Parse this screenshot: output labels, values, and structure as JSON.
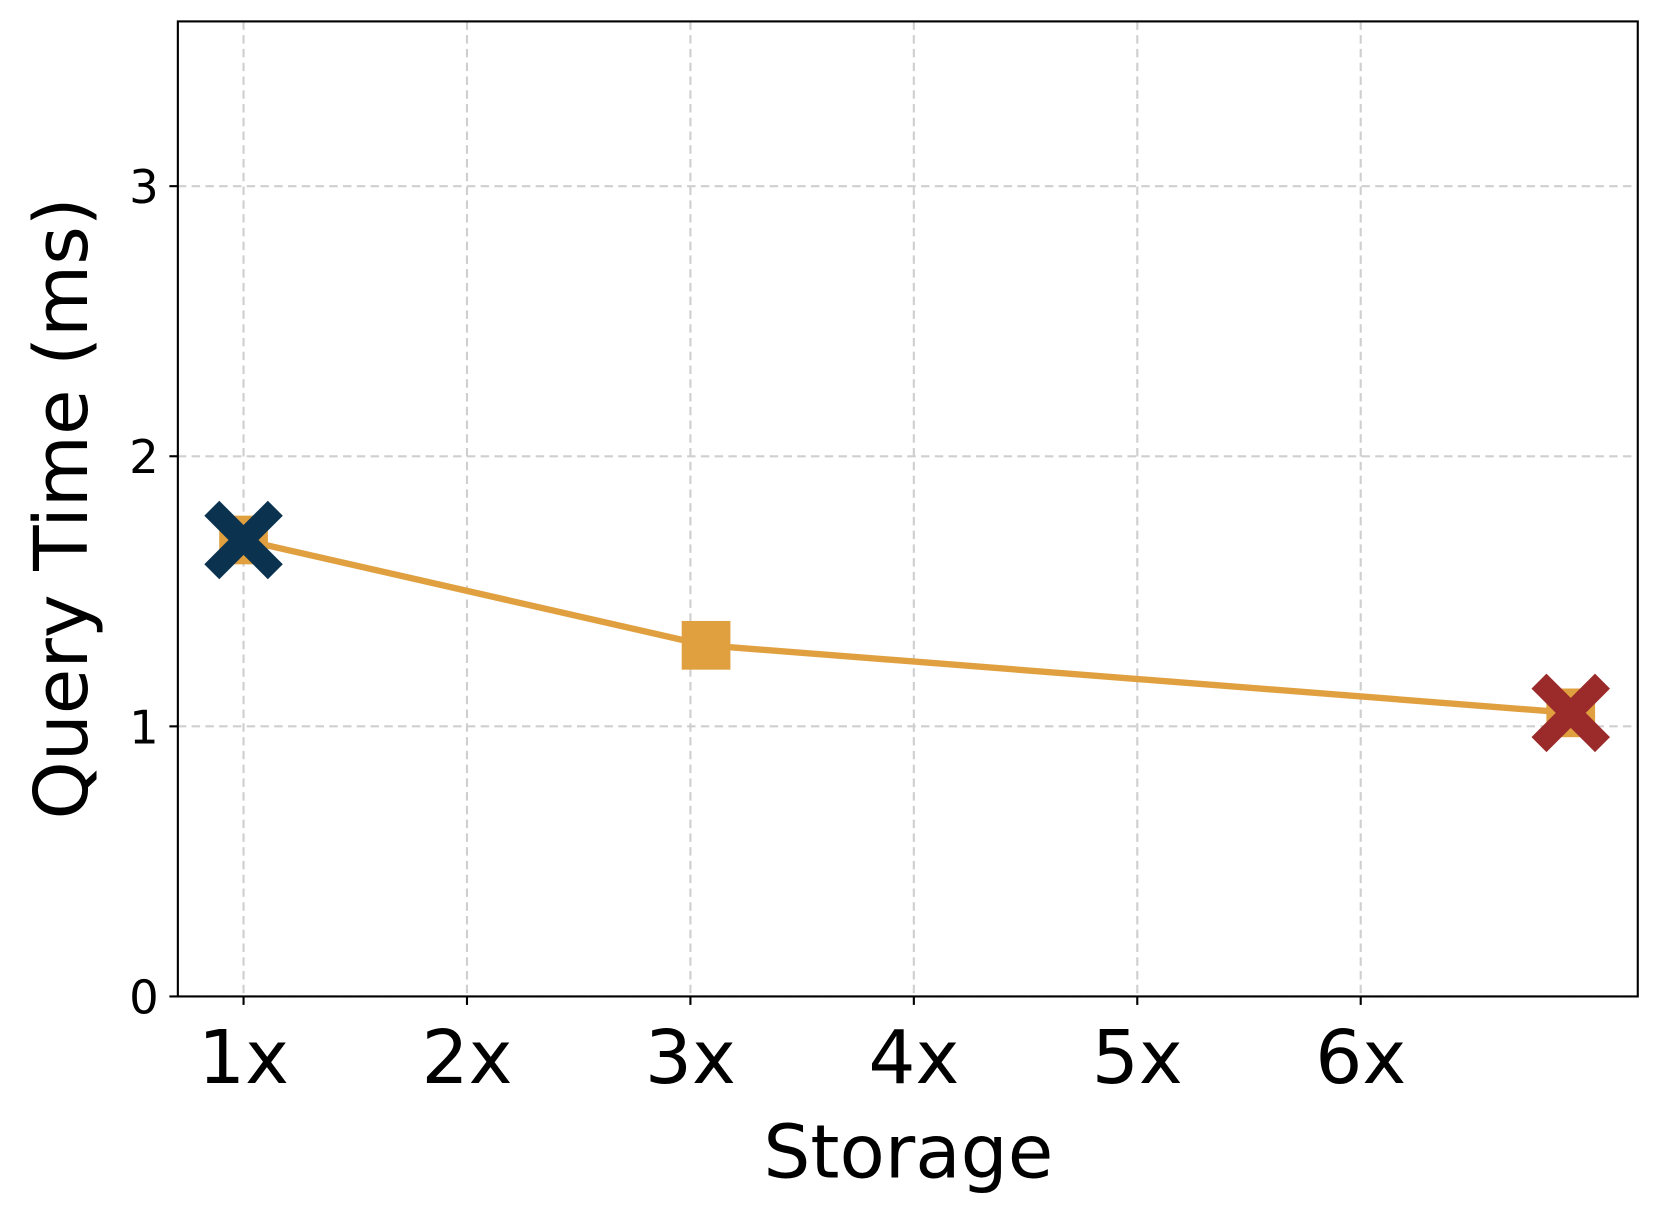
{
  "chart_data": {
    "type": "line",
    "xlabel": "Storage",
    "ylabel": "Query Time (ms)",
    "series": [
      {
        "color": "#e0a040",
        "marker": "square",
        "x": [
          1,
          3.07,
          6.94
        ],
        "values": [
          1.69,
          1.3,
          1.05
        ]
      },
      {
        "color": "#0b3350",
        "marker": "X",
        "x": [
          1
        ],
        "values": [
          1.69
        ]
      },
      {
        "color": "#9b2a2a",
        "marker": "X",
        "x": [
          6.94
        ],
        "values": [
          1.05
        ]
      }
    ],
    "xlim": [
      0.706,
      7.24
    ],
    "ylim": [
      0,
      3.61
    ],
    "xticks": [
      {
        "value": 1,
        "label": "1x"
      },
      {
        "value": 2,
        "label": "2x"
      },
      {
        "value": 3,
        "label": "3x"
      },
      {
        "value": 4,
        "label": "4x"
      },
      {
        "value": 5,
        "label": "5x"
      },
      {
        "value": 6,
        "label": "6x"
      }
    ],
    "yticks": [
      0,
      1,
      2,
      3
    ],
    "grid": true
  }
}
